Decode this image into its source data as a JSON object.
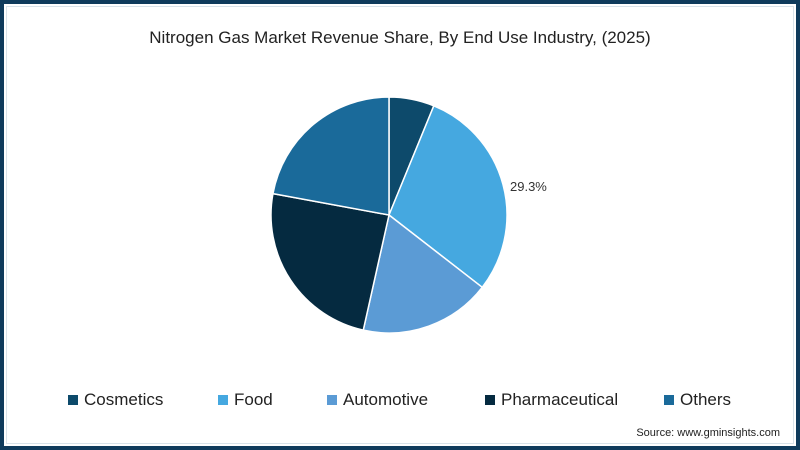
{
  "title": "Nitrogen Gas Market Revenue Share, By End Use Industry, (2025)",
  "source": "Source: www.gminsights.com",
  "chart_data": {
    "type": "pie",
    "title": "Nitrogen Gas Market Revenue Share, By End Use Industry, (2025)",
    "categories": [
      "Cosmetics",
      "Food",
      "Automotive",
      "Pharmaceutical",
      "Others"
    ],
    "values": [
      6.2,
      29.3,
      18.0,
      24.4,
      22.1
    ],
    "colors": [
      "#0d4a6b",
      "#45a8e0",
      "#5b9bd5",
      "#052a40",
      "#1a6a9a"
    ],
    "data_labels": [
      {
        "category": "Food",
        "text": "29.3%"
      }
    ],
    "legend_position": "bottom"
  },
  "labels": {
    "food": "29.3%"
  },
  "legend": [
    {
      "label": "Cosmetics",
      "color": "#0d4a6b"
    },
    {
      "label": "Food",
      "color": "#45a8e0"
    },
    {
      "label": "Automotive",
      "color": "#5b9bd5"
    },
    {
      "label": "Pharmaceutical",
      "color": "#052a40"
    },
    {
      "label": "Others",
      "color": "#1a6a9a"
    }
  ]
}
